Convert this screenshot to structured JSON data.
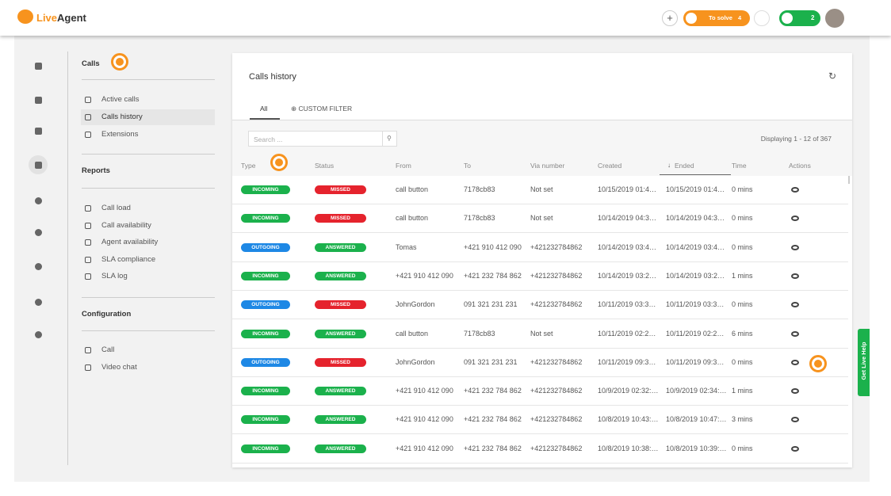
{
  "header": {
    "logo_live": "Live",
    "logo_agent": "Agent",
    "to_solve": "To solve",
    "to_solve_count": "4",
    "chat_count": "2"
  },
  "sidebar": {
    "calls": {
      "title": "Calls",
      "items": [
        "Active calls",
        "Calls history",
        "Extensions"
      ]
    },
    "reports": {
      "title": "Reports",
      "items": [
        "Call load",
        "Call availability",
        "Agent availability",
        "SLA compliance",
        "SLA log"
      ]
    },
    "configuration": {
      "title": "Configuration",
      "items": [
        "Call",
        "Video chat"
      ]
    }
  },
  "main": {
    "title": "Calls history",
    "tabs": [
      "All",
      "CUSTOM FILTER"
    ],
    "search_placeholder": "Search ...",
    "displaying": "Displaying 1 - 12 of 367",
    "columns": [
      "Type",
      "Status",
      "From",
      "To",
      "Via number",
      "Created",
      "Ended",
      "Time",
      "Actions"
    ],
    "rows": [
      {
        "type": "INCOMING",
        "type_color": "#1bb14c",
        "status": "MISSED",
        "status_color": "#e5232d",
        "from": "call button",
        "to": "7178cb83",
        "via": "Not set",
        "created": "10/15/2019 01:4…",
        "ended": "10/15/2019 01:4…",
        "time": "0 mins"
      },
      {
        "type": "INCOMING",
        "type_color": "#1bb14c",
        "status": "MISSED",
        "status_color": "#e5232d",
        "from": "call button",
        "to": "7178cb83",
        "via": "Not set",
        "created": "10/14/2019 04:3…",
        "ended": "10/14/2019 04:3…",
        "time": "0 mins"
      },
      {
        "type": "OUTGOING",
        "type_color": "#1e88e5",
        "status": "ANSWERED",
        "status_color": "#1bb14c",
        "from": "Tomas",
        "to": "+421 910 412 090",
        "via": "+421232784862",
        "created": "10/14/2019 03:4…",
        "ended": "10/14/2019 03:4…",
        "time": "0 mins"
      },
      {
        "type": "INCOMING",
        "type_color": "#1bb14c",
        "status": "ANSWERED",
        "status_color": "#1bb14c",
        "from": "+421 910 412 090",
        "to": "+421 232 784 862",
        "via": "+421232784862",
        "created": "10/14/2019 03:2…",
        "ended": "10/14/2019 03:2…",
        "time": "1 mins"
      },
      {
        "type": "OUTGOING",
        "type_color": "#1e88e5",
        "status": "MISSED",
        "status_color": "#e5232d",
        "from": "JohnGordon",
        "to": "091 321 231 231",
        "via": "+421232784862",
        "created": "10/11/2019 03:3…",
        "ended": "10/11/2019 03:3…",
        "time": "0 mins"
      },
      {
        "type": "INCOMING",
        "type_color": "#1bb14c",
        "status": "ANSWERED",
        "status_color": "#1bb14c",
        "from": "call button",
        "to": "7178cb83",
        "via": "Not set",
        "created": "10/11/2019 02:2…",
        "ended": "10/11/2019 02:2…",
        "time": "6 mins"
      },
      {
        "type": "OUTGOING",
        "type_color": "#1e88e5",
        "status": "MISSED",
        "status_color": "#e5232d",
        "from": "JohnGordon",
        "to": "091 321 231 231",
        "via": "+421232784862",
        "created": "10/11/2019 09:3…",
        "ended": "10/11/2019 09:3…",
        "time": "0 mins"
      },
      {
        "type": "INCOMING",
        "type_color": "#1bb14c",
        "status": "ANSWERED",
        "status_color": "#1bb14c",
        "from": "+421 910 412 090",
        "to": "+421 232 784 862",
        "via": "+421232784862",
        "created": "10/9/2019 02:32:…",
        "ended": "10/9/2019 02:34:…",
        "time": "1 mins"
      },
      {
        "type": "INCOMING",
        "type_color": "#1bb14c",
        "status": "ANSWERED",
        "status_color": "#1bb14c",
        "from": "+421 910 412 090",
        "to": "+421 232 784 862",
        "via": "+421232784862",
        "created": "10/8/2019 10:43:…",
        "ended": "10/8/2019 10:47:…",
        "time": "3 mins"
      },
      {
        "type": "INCOMING",
        "type_color": "#1bb14c",
        "status": "ANSWERED",
        "status_color": "#1bb14c",
        "from": "+421 910 412 090",
        "to": "+421 232 784 862",
        "via": "+421232784862",
        "created": "10/8/2019 10:38:…",
        "ended": "10/8/2019 10:39:…",
        "time": "0 mins"
      }
    ]
  },
  "help_tab": "Get Live Help"
}
